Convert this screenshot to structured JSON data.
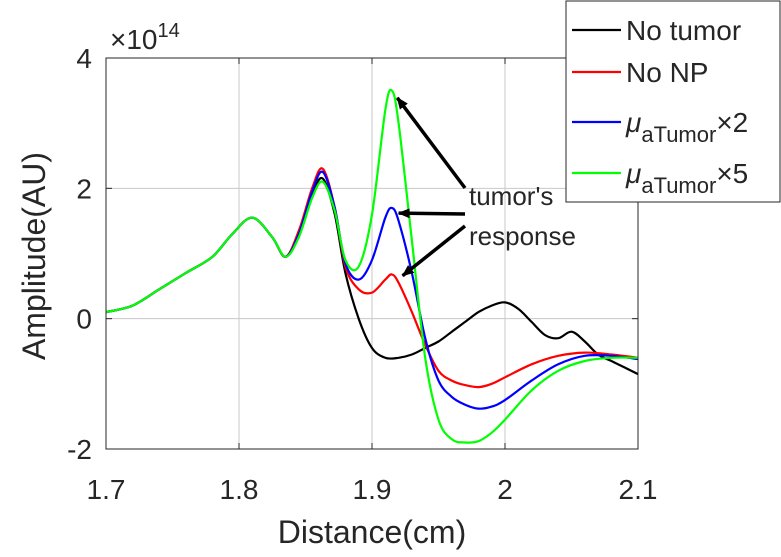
{
  "chart_data": {
    "type": "line",
    "title": "",
    "xlabel": "Distance(cm)",
    "ylabel": "Amplitude(AU)",
    "y_exponent_label": "×10",
    "y_exponent": "14",
    "xlim": [
      1.7,
      2.1
    ],
    "ylim": [
      -2,
      4
    ],
    "x_ticks": [
      1.7,
      1.8,
      1.9,
      2.0,
      2.1
    ],
    "x_tick_labels": [
      "1.7",
      "1.8",
      "1.9",
      "2",
      "2.1"
    ],
    "y_ticks": [
      -2,
      0,
      2,
      4
    ],
    "y_tick_labels": [
      "-2",
      "0",
      "2",
      "4"
    ],
    "grid": true,
    "legend_position": "top-right",
    "series": [
      {
        "name": "No tumor",
        "color": "#000000",
        "x": [
          1.7,
          1.72,
          1.74,
          1.76,
          1.78,
          1.795,
          1.81,
          1.825,
          1.835,
          1.845,
          1.855,
          1.863,
          1.872,
          1.88,
          1.89,
          1.9,
          1.91,
          1.92,
          1.93,
          1.94,
          1.95,
          1.96,
          1.97,
          1.98,
          1.99,
          2.0,
          2.01,
          2.02,
          2.03,
          2.04,
          2.05,
          2.06,
          2.07,
          2.08,
          2.09,
          2.1
        ],
        "y": [
          0.1,
          0.2,
          0.45,
          0.7,
          0.95,
          1.3,
          1.55,
          1.25,
          0.95,
          1.3,
          1.9,
          2.15,
          1.6,
          0.7,
          0.0,
          -0.45,
          -0.6,
          -0.6,
          -0.55,
          -0.45,
          -0.35,
          -0.2,
          -0.05,
          0.1,
          0.2,
          0.25,
          0.15,
          -0.05,
          -0.25,
          -0.3,
          -0.2,
          -0.35,
          -0.55,
          -0.65,
          -0.75,
          -0.85
        ]
      },
      {
        "name": "No NP",
        "color": "#ff0000",
        "x": [
          1.7,
          1.72,
          1.74,
          1.76,
          1.78,
          1.795,
          1.81,
          1.825,
          1.835,
          1.845,
          1.855,
          1.863,
          1.872,
          1.88,
          1.89,
          1.9,
          1.91,
          1.915,
          1.92,
          1.93,
          1.94,
          1.95,
          1.96,
          1.97,
          1.98,
          1.99,
          2.0,
          2.02,
          2.04,
          2.06,
          2.08,
          2.1
        ],
        "y": [
          0.1,
          0.2,
          0.45,
          0.7,
          0.95,
          1.3,
          1.55,
          1.25,
          0.95,
          1.35,
          2.0,
          2.3,
          1.7,
          0.8,
          0.45,
          0.4,
          0.6,
          0.68,
          0.55,
          0.1,
          -0.4,
          -0.8,
          -0.95,
          -1.02,
          -1.05,
          -1.0,
          -0.9,
          -0.7,
          -0.57,
          -0.52,
          -0.55,
          -0.6
        ]
      },
      {
        "name": "μ_aTumor×2",
        "color": "#0000ff",
        "x": [
          1.7,
          1.72,
          1.74,
          1.76,
          1.78,
          1.795,
          1.81,
          1.825,
          1.835,
          1.845,
          1.855,
          1.863,
          1.872,
          1.88,
          1.89,
          1.9,
          1.91,
          1.915,
          1.92,
          1.93,
          1.94,
          1.95,
          1.96,
          1.97,
          1.98,
          1.99,
          2.0,
          2.02,
          2.04,
          2.06,
          2.08,
          2.1
        ],
        "y": [
          0.1,
          0.2,
          0.45,
          0.7,
          0.95,
          1.3,
          1.55,
          1.25,
          0.95,
          1.3,
          1.95,
          2.25,
          1.7,
          0.85,
          0.6,
          0.9,
          1.55,
          1.7,
          1.5,
          0.7,
          -0.3,
          -0.95,
          -1.2,
          -1.32,
          -1.38,
          -1.35,
          -1.25,
          -0.95,
          -0.7,
          -0.57,
          -0.57,
          -0.62
        ]
      },
      {
        "name": "μ_aTumor×5",
        "color": "#00ff00",
        "x": [
          1.7,
          1.72,
          1.74,
          1.76,
          1.78,
          1.795,
          1.81,
          1.825,
          1.835,
          1.845,
          1.855,
          1.863,
          1.872,
          1.88,
          1.89,
          1.9,
          1.91,
          1.915,
          1.92,
          1.93,
          1.94,
          1.95,
          1.96,
          1.97,
          1.98,
          1.99,
          2.0,
          2.02,
          2.04,
          2.06,
          2.08,
          2.1
        ],
        "y": [
          0.1,
          0.2,
          0.45,
          0.7,
          0.95,
          1.3,
          1.55,
          1.25,
          0.95,
          1.25,
          1.85,
          2.1,
          1.65,
          0.9,
          0.8,
          1.6,
          3.2,
          3.5,
          3.0,
          1.2,
          -0.6,
          -1.55,
          -1.85,
          -1.9,
          -1.88,
          -1.75,
          -1.55,
          -1.1,
          -0.8,
          -0.65,
          -0.6,
          -0.6
        ]
      }
    ],
    "legend_entries": [
      {
        "label": "No tumor",
        "color": "#000000"
      },
      {
        "label": "No NP",
        "color": "#ff0000"
      },
      {
        "label": "μ",
        "sub": "aTumor",
        "suffix": "×2",
        "color": "#0000ff"
      },
      {
        "label": "μ",
        "sub": "aTumor",
        "suffix": "×5",
        "color": "#00ff00"
      }
    ],
    "annotation": {
      "lines": [
        "tumor's",
        "response"
      ],
      "arrow_targets": [
        {
          "x": 1.916,
          "y": 3.45
        },
        {
          "x": 1.917,
          "y": 1.68
        },
        {
          "x": 1.92,
          "y": 0.72
        }
      ]
    }
  }
}
